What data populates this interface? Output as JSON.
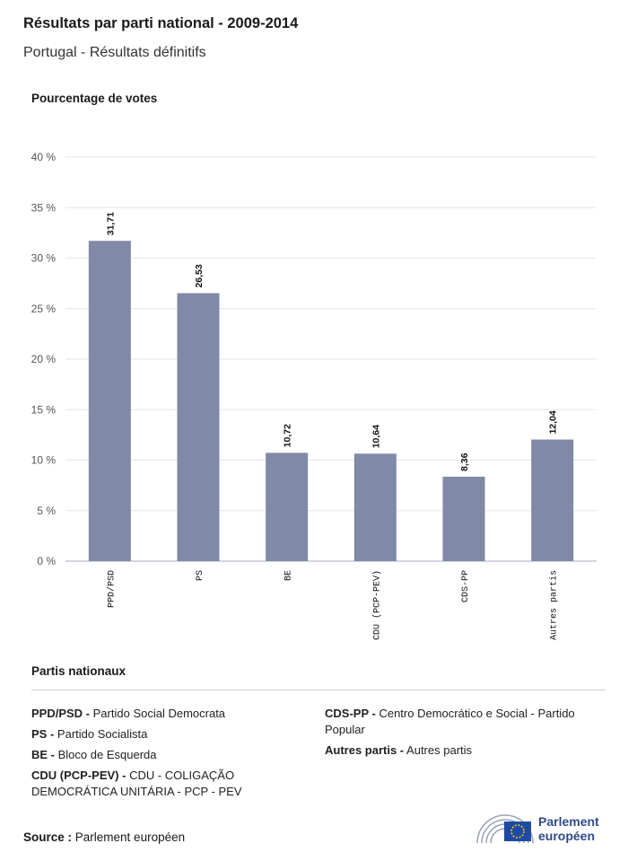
{
  "header": {
    "title": "Résultats par parti national - 2009-2014",
    "subtitle": "Portugal - Résultats définitifs"
  },
  "chart_data": {
    "type": "bar",
    "ylabel": "Pourcentage de votes",
    "categories": [
      "PPD/PSD",
      "PS",
      "BE",
      "CDU (PCP-PEV)",
      "CDS-PP",
      "Autres partis"
    ],
    "values": [
      31.71,
      26.53,
      10.72,
      10.64,
      8.36,
      12.04
    ],
    "value_labels": [
      "31,71",
      "26,53",
      "10,72",
      "10,64",
      "8,36",
      "12,04"
    ],
    "ylim": [
      0,
      40
    ],
    "yticks": [
      0,
      5,
      10,
      15,
      20,
      25,
      30,
      35,
      40
    ],
    "ytick_labels": [
      "0 %",
      "5 %",
      "10 %",
      "15 %",
      "20 %",
      "25 %",
      "30 %",
      "35 %",
      "40 %"
    ],
    "grid": true,
    "bar_color": "#8089a6"
  },
  "legend": {
    "title": "Partis nationaux",
    "left": [
      {
        "abbr": "PPD/PSD -",
        "name": "Partido Social Democrata"
      },
      {
        "abbr": "PS -",
        "name": "Partido Socialista"
      },
      {
        "abbr": "BE -",
        "name": "Bloco de Esquerda"
      },
      {
        "abbr": "CDU (PCP-PEV) -",
        "name": "CDU - COLIGAÇÃO DEMOCRÁTICA UNITÁRIA - PCP - PEV"
      }
    ],
    "right": [
      {
        "abbr": "CDS-PP -",
        "name": "Centro Democrático e Social - Partido Popular"
      },
      {
        "abbr": "Autres partis -",
        "name": "Autres partis"
      }
    ]
  },
  "footer": {
    "source_label": "Source :",
    "source_value": "Parlement européen",
    "logo_line1": "Parlement",
    "logo_line2": "européen"
  }
}
